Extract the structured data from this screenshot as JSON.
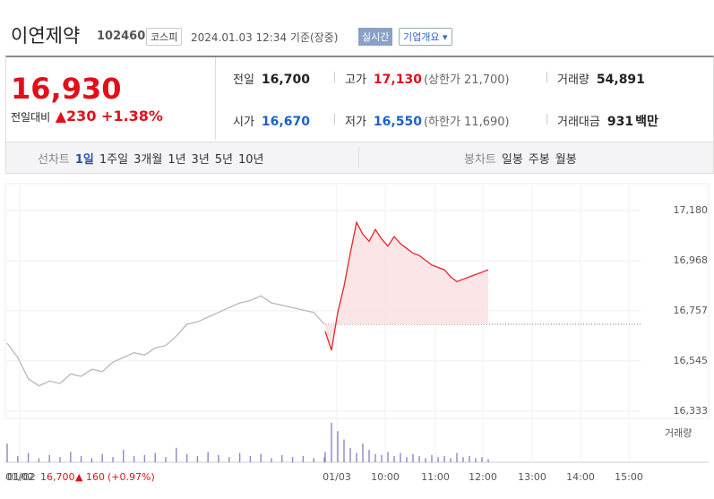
{
  "header": {
    "name": "이연제약",
    "code": "102460",
    "market": "코스피",
    "timestamp": "2024.01.03 12:34 기준(장중)",
    "realtime": "실시간",
    "overview": "기업개요"
  },
  "quote": {
    "price": "16,930",
    "change_label": "전일대비",
    "change": "230",
    "change_pct": "+1.38%"
  },
  "stats": [
    {
      "label": "전일",
      "value": "16,700",
      "color": "#222"
    },
    {
      "label": "고가",
      "value": "17,130",
      "color": "#e0101a",
      "extra": "(상한가 21,700)"
    },
    {
      "label": "거래량",
      "value": "54,891",
      "color": "#222"
    },
    {
      "label": "시가",
      "value": "16,670",
      "color": "#1a62c8"
    },
    {
      "label": "저가",
      "value": "16,550",
      "color": "#1a62c8",
      "extra": "(하한가 11,690)"
    },
    {
      "label": "거래대금",
      "value": "931",
      "color": "#222",
      "unit": "백만"
    }
  ],
  "tabs": {
    "line_label": "선차트",
    "periods": [
      "1일",
      "1주일",
      "3개월",
      "1년",
      "3년",
      "5년",
      "10년"
    ],
    "candle_label": "봉차트",
    "candles": [
      "일봉",
      "주봉",
      "월봉"
    ]
  },
  "chart_data": {
    "type": "line",
    "ylim": [
      16333,
      17180
    ],
    "yticks": [
      {
        "value": 17180,
        "label": "17,180"
      },
      {
        "value": 16968,
        "label": "16,968"
      },
      {
        "value": 16757,
        "label": "16,757"
      },
      {
        "value": 16545,
        "label": "16,545"
      },
      {
        "value": 16333,
        "label": "16,333"
      }
    ],
    "reference": 16700,
    "series": [
      {
        "color": "#b8b8b8",
        "values": [
          16620,
          16560,
          16470,
          16440,
          16460,
          16450,
          16490,
          16480,
          16510,
          16500,
          16540,
          16560,
          16580,
          16570,
          16600,
          16610,
          16650,
          16700,
          16710,
          16730,
          16750,
          16770,
          16790,
          16800,
          16820,
          16790,
          16780,
          16770,
          16760,
          16750,
          16700
        ]
      },
      {
        "color": "#e8232b",
        "fill": "#fbdfe0",
        "values": [
          16670,
          16590,
          16750,
          16860,
          17000,
          17130,
          17080,
          17050,
          17100,
          17060,
          17030,
          17070,
          17040,
          17020,
          17000,
          16990,
          16970,
          16950,
          16940,
          16930,
          16900,
          16880,
          16890,
          16900,
          16910,
          16920,
          16930
        ]
      }
    ],
    "xticks": [
      "01/02",
      "01/03",
      "10:00",
      "11:00",
      "12:00",
      "13:00",
      "14:00",
      "15:00"
    ],
    "volume": {
      "label": "거래량",
      "color": "#8f86c4",
      "values": [
        [
          18,
          6,
          9,
          4,
          7,
          5,
          10,
          6,
          4,
          8,
          5,
          12,
          6,
          7,
          9,
          5,
          14,
          8,
          6,
          10,
          7,
          5,
          9,
          6,
          8,
          4,
          7,
          5,
          6,
          4,
          5
        ],
        [
          10,
          38,
          30,
          22,
          14,
          9,
          18,
          12,
          8,
          7,
          10,
          6,
          9,
          5,
          8,
          6,
          4,
          7,
          5,
          6,
          4,
          9,
          5,
          6,
          4,
          5,
          3
        ]
      ]
    },
    "footer": {
      "date": "01/02",
      "price": "16,700",
      "change": "160",
      "change_pct": "(+0.97%)"
    }
  }
}
